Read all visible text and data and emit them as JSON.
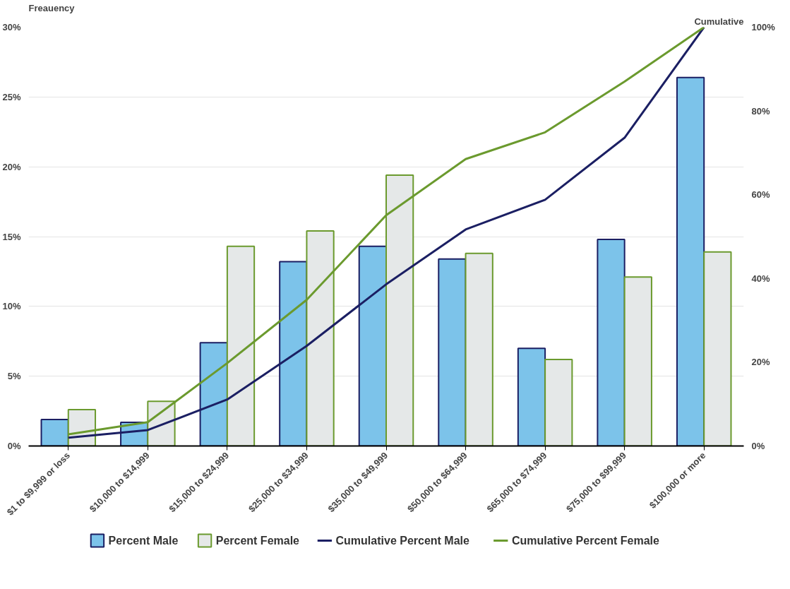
{
  "chart_data": {
    "type": "bar",
    "ylabel": "Freauency",
    "y2label": "Cumulative",
    "categories": [
      "$1 to $9,999 or loss",
      "$10,000 to $14,999",
      "$15,000 to $24,999",
      "$25,000 to $34,999",
      "$35,000 to $49,999",
      "$50,000 to $64,999",
      "$65,000 to $74,999",
      "$75,000 to $99,999",
      "$100,000 or more"
    ],
    "series": [
      {
        "name": "Percent Male",
        "color": "#7cc3ea",
        "values": [
          1.9,
          1.7,
          7.4,
          13.2,
          14.3,
          13.4,
          7.0,
          14.8,
          26.4
        ]
      },
      {
        "name": "Percent Female",
        "color": "#e5e8e8",
        "values": [
          2.6,
          3.2,
          14.3,
          15.4,
          19.4,
          13.8,
          6.2,
          12.1,
          13.9
        ]
      },
      {
        "name": "Cumulative Percent Male",
        "type": "line",
        "axis": "y2",
        "color": "#1b1f63",
        "values": [
          2.0,
          3.8,
          11.1,
          23.9,
          38.6,
          51.7,
          58.8,
          73.6,
          100
        ]
      },
      {
        "name": "Cumulative Percent Female",
        "type": "line",
        "axis": "y2",
        "color": "#6b9a2e",
        "values": [
          2.8,
          5.7,
          19.8,
          34.9,
          55.1,
          68.5,
          74.9,
          87,
          100
        ]
      }
    ],
    "ylim": [
      0,
      30
    ],
    "yticks": [
      {
        "value": 0,
        "label": "0%"
      },
      {
        "value": 5,
        "label": "5%"
      },
      {
        "value": 10,
        "label": "10%"
      },
      {
        "value": 15,
        "label": "15%"
      },
      {
        "value": 20,
        "label": "20%"
      },
      {
        "value": 25,
        "label": "25%"
      },
      {
        "value": 30,
        "label": "30%"
      }
    ],
    "y2lim": [
      0,
      100
    ],
    "y2ticks": [
      {
        "value": 0,
        "label": "0%"
      },
      {
        "value": 20,
        "label": "20%"
      },
      {
        "value": 40,
        "label": "40%"
      },
      {
        "value": 60,
        "label": "60%"
      },
      {
        "value": 80,
        "label": "80%"
      },
      {
        "value": 100,
        "label": "100%"
      }
    ],
    "grid": "y",
    "legend": "bottom",
    "line_style": "solid"
  }
}
